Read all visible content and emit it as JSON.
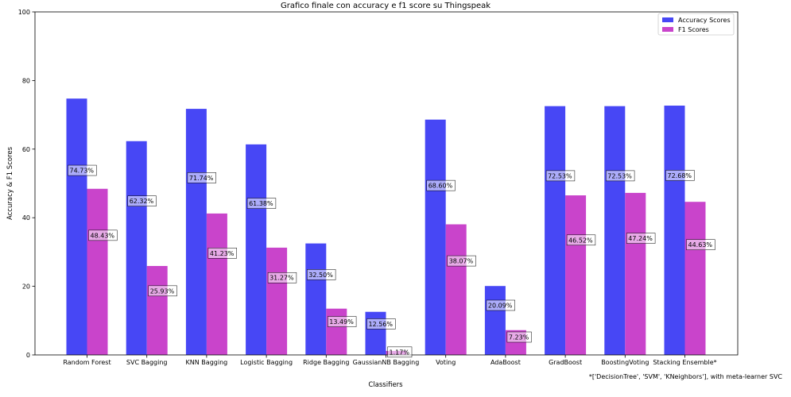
{
  "chart_data": {
    "type": "bar",
    "title": "Grafico finale con accuracy e f1 score su Thingspeak",
    "xlabel": "Classifiers",
    "ylabel": "Accuracy & F1 Scores",
    "ylim": [
      0,
      100
    ],
    "yticks": [
      0,
      20,
      40,
      60,
      80,
      100
    ],
    "grid": false,
    "legend_position": "top-right",
    "categories": [
      "Random Forest",
      "SVC Bagging",
      "KNN Bagging",
      "Logistic Bagging",
      "Ridge Bagging",
      "GaussianNB Bagging",
      "Voting",
      "AdaBoost",
      "GradBoost",
      "BoostingVoting",
      "Stacking Ensemble*"
    ],
    "series": [
      {
        "name": "Accuracy Scores",
        "color": "#4747f5",
        "values": [
          74.73,
          62.32,
          71.74,
          61.38,
          32.5,
          12.56,
          68.6,
          20.09,
          72.53,
          72.53,
          72.68
        ],
        "labels": [
          "74.73%",
          "62.32%",
          "71.74%",
          "61.38%",
          "32.50%",
          "12.56%",
          "68.60%",
          "20.09%",
          "72.53%",
          "72.53%",
          "72.68%"
        ]
      },
      {
        "name": "F1 Scores",
        "color": "#c944cb",
        "values": [
          48.43,
          25.93,
          41.23,
          31.27,
          13.49,
          1.17,
          38.07,
          7.23,
          46.52,
          47.24,
          44.63
        ],
        "labels": [
          "48.43%",
          "25.93%",
          "41.23%",
          "31.27%",
          "13.49%",
          "1.17%",
          "38.07%",
          "7.23%",
          "46.52%",
          "47.24%",
          "44.63%"
        ]
      }
    ],
    "annotation": "*['DecisionTree', 'SVM', 'KNeighbors'], with meta-learner SVC"
  }
}
